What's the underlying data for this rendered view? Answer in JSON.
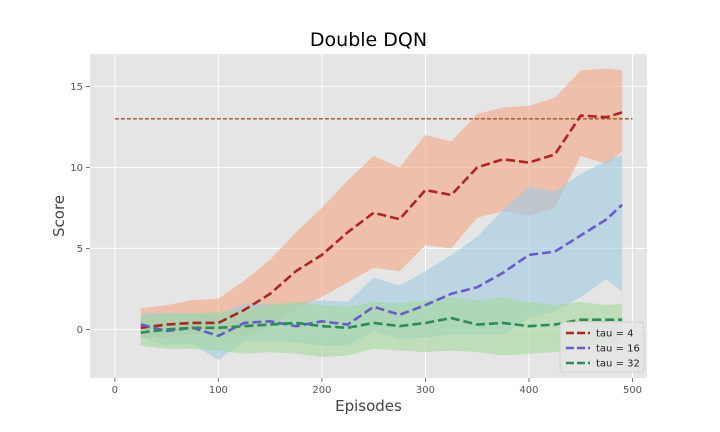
{
  "chart_data": {
    "type": "line",
    "title": "Double DQN",
    "xlabel": "Episodes",
    "ylabel": "Score",
    "xlim": [
      -24,
      514
    ],
    "ylim": [
      -3,
      17
    ],
    "xticks": [
      0,
      100,
      200,
      300,
      400,
      500
    ],
    "yticks": [
      0,
      5,
      10,
      15
    ],
    "grid": true,
    "legend_position": "lower-right",
    "reference_line": {
      "y": 13,
      "color": "#a0522d",
      "style": "dashed"
    },
    "x": [
      25,
      50,
      75,
      100,
      125,
      150,
      175,
      200,
      225,
      250,
      275,
      300,
      325,
      350,
      375,
      400,
      425,
      450,
      475,
      490
    ],
    "series": [
      {
        "name": "tau = 4",
        "color": "#b22222",
        "band_color": "#f4a582",
        "values": [
          0.1,
          0.3,
          0.4,
          0.4,
          1.2,
          2.2,
          3.6,
          4.6,
          6.0,
          7.2,
          6.8,
          8.6,
          8.3,
          10.0,
          10.5,
          10.3,
          10.8,
          13.2,
          13.1,
          13.4
        ],
        "upper": [
          1.3,
          1.5,
          1.8,
          1.9,
          3.0,
          4.3,
          6.0,
          7.5,
          9.2,
          10.7,
          10.0,
          12.0,
          11.6,
          13.3,
          13.7,
          13.8,
          14.3,
          16.0,
          16.1,
          16.0
        ],
        "lower": [
          -0.5,
          -0.5,
          -0.3,
          -0.2,
          -0.4,
          0.2,
          1.3,
          2.0,
          2.9,
          3.8,
          3.6,
          5.2,
          5.0,
          6.9,
          7.3,
          7.0,
          7.5,
          10.7,
          10.2,
          11.0
        ]
      },
      {
        "name": "tau = 16",
        "color": "#6a5acd",
        "band_color": "#9ecae1",
        "values": [
          0.3,
          -0.1,
          0.1,
          -0.4,
          0.4,
          0.5,
          0.2,
          0.5,
          0.3,
          1.4,
          0.9,
          1.5,
          2.2,
          2.6,
          3.5,
          4.6,
          4.8,
          5.8,
          6.8,
          7.7
        ],
        "upper": [
          1.0,
          1.0,
          1.0,
          0.9,
          1.6,
          1.6,
          1.6,
          1.8,
          1.7,
          3.2,
          2.7,
          3.6,
          4.6,
          5.7,
          7.4,
          8.8,
          8.5,
          9.6,
          10.4,
          10.8
        ],
        "lower": [
          -0.5,
          -1.0,
          -0.9,
          -1.9,
          -0.7,
          -0.7,
          -0.8,
          -1.0,
          -1.0,
          -0.1,
          -0.6,
          -0.5,
          -0.3,
          -0.3,
          -0.3,
          0.7,
          1.1,
          2.0,
          3.1,
          2.3
        ]
      },
      {
        "name": "tau = 32",
        "color": "#2e8b57",
        "band_color": "#a1d99b",
        "values": [
          -0.2,
          0.0,
          0.1,
          0.1,
          0.2,
          0.3,
          0.4,
          0.2,
          0.1,
          0.4,
          0.2,
          0.4,
          0.7,
          0.3,
          0.4,
          0.2,
          0.3,
          0.6,
          0.6,
          0.6
        ],
        "upper": [
          0.8,
          1.0,
          1.0,
          1.1,
          1.2,
          1.5,
          1.7,
          1.5,
          1.4,
          1.7,
          1.6,
          1.8,
          2.0,
          1.8,
          2.0,
          1.7,
          1.5,
          1.7,
          1.5,
          1.6
        ],
        "lower": [
          -1.0,
          -1.2,
          -1.2,
          -1.3,
          -1.5,
          -1.4,
          -1.5,
          -1.7,
          -1.6,
          -1.2,
          -1.3,
          -1.4,
          -1.3,
          -1.4,
          -1.6,
          -1.5,
          -1.4,
          -1.2,
          -0.9,
          -0.8
        ]
      }
    ]
  }
}
